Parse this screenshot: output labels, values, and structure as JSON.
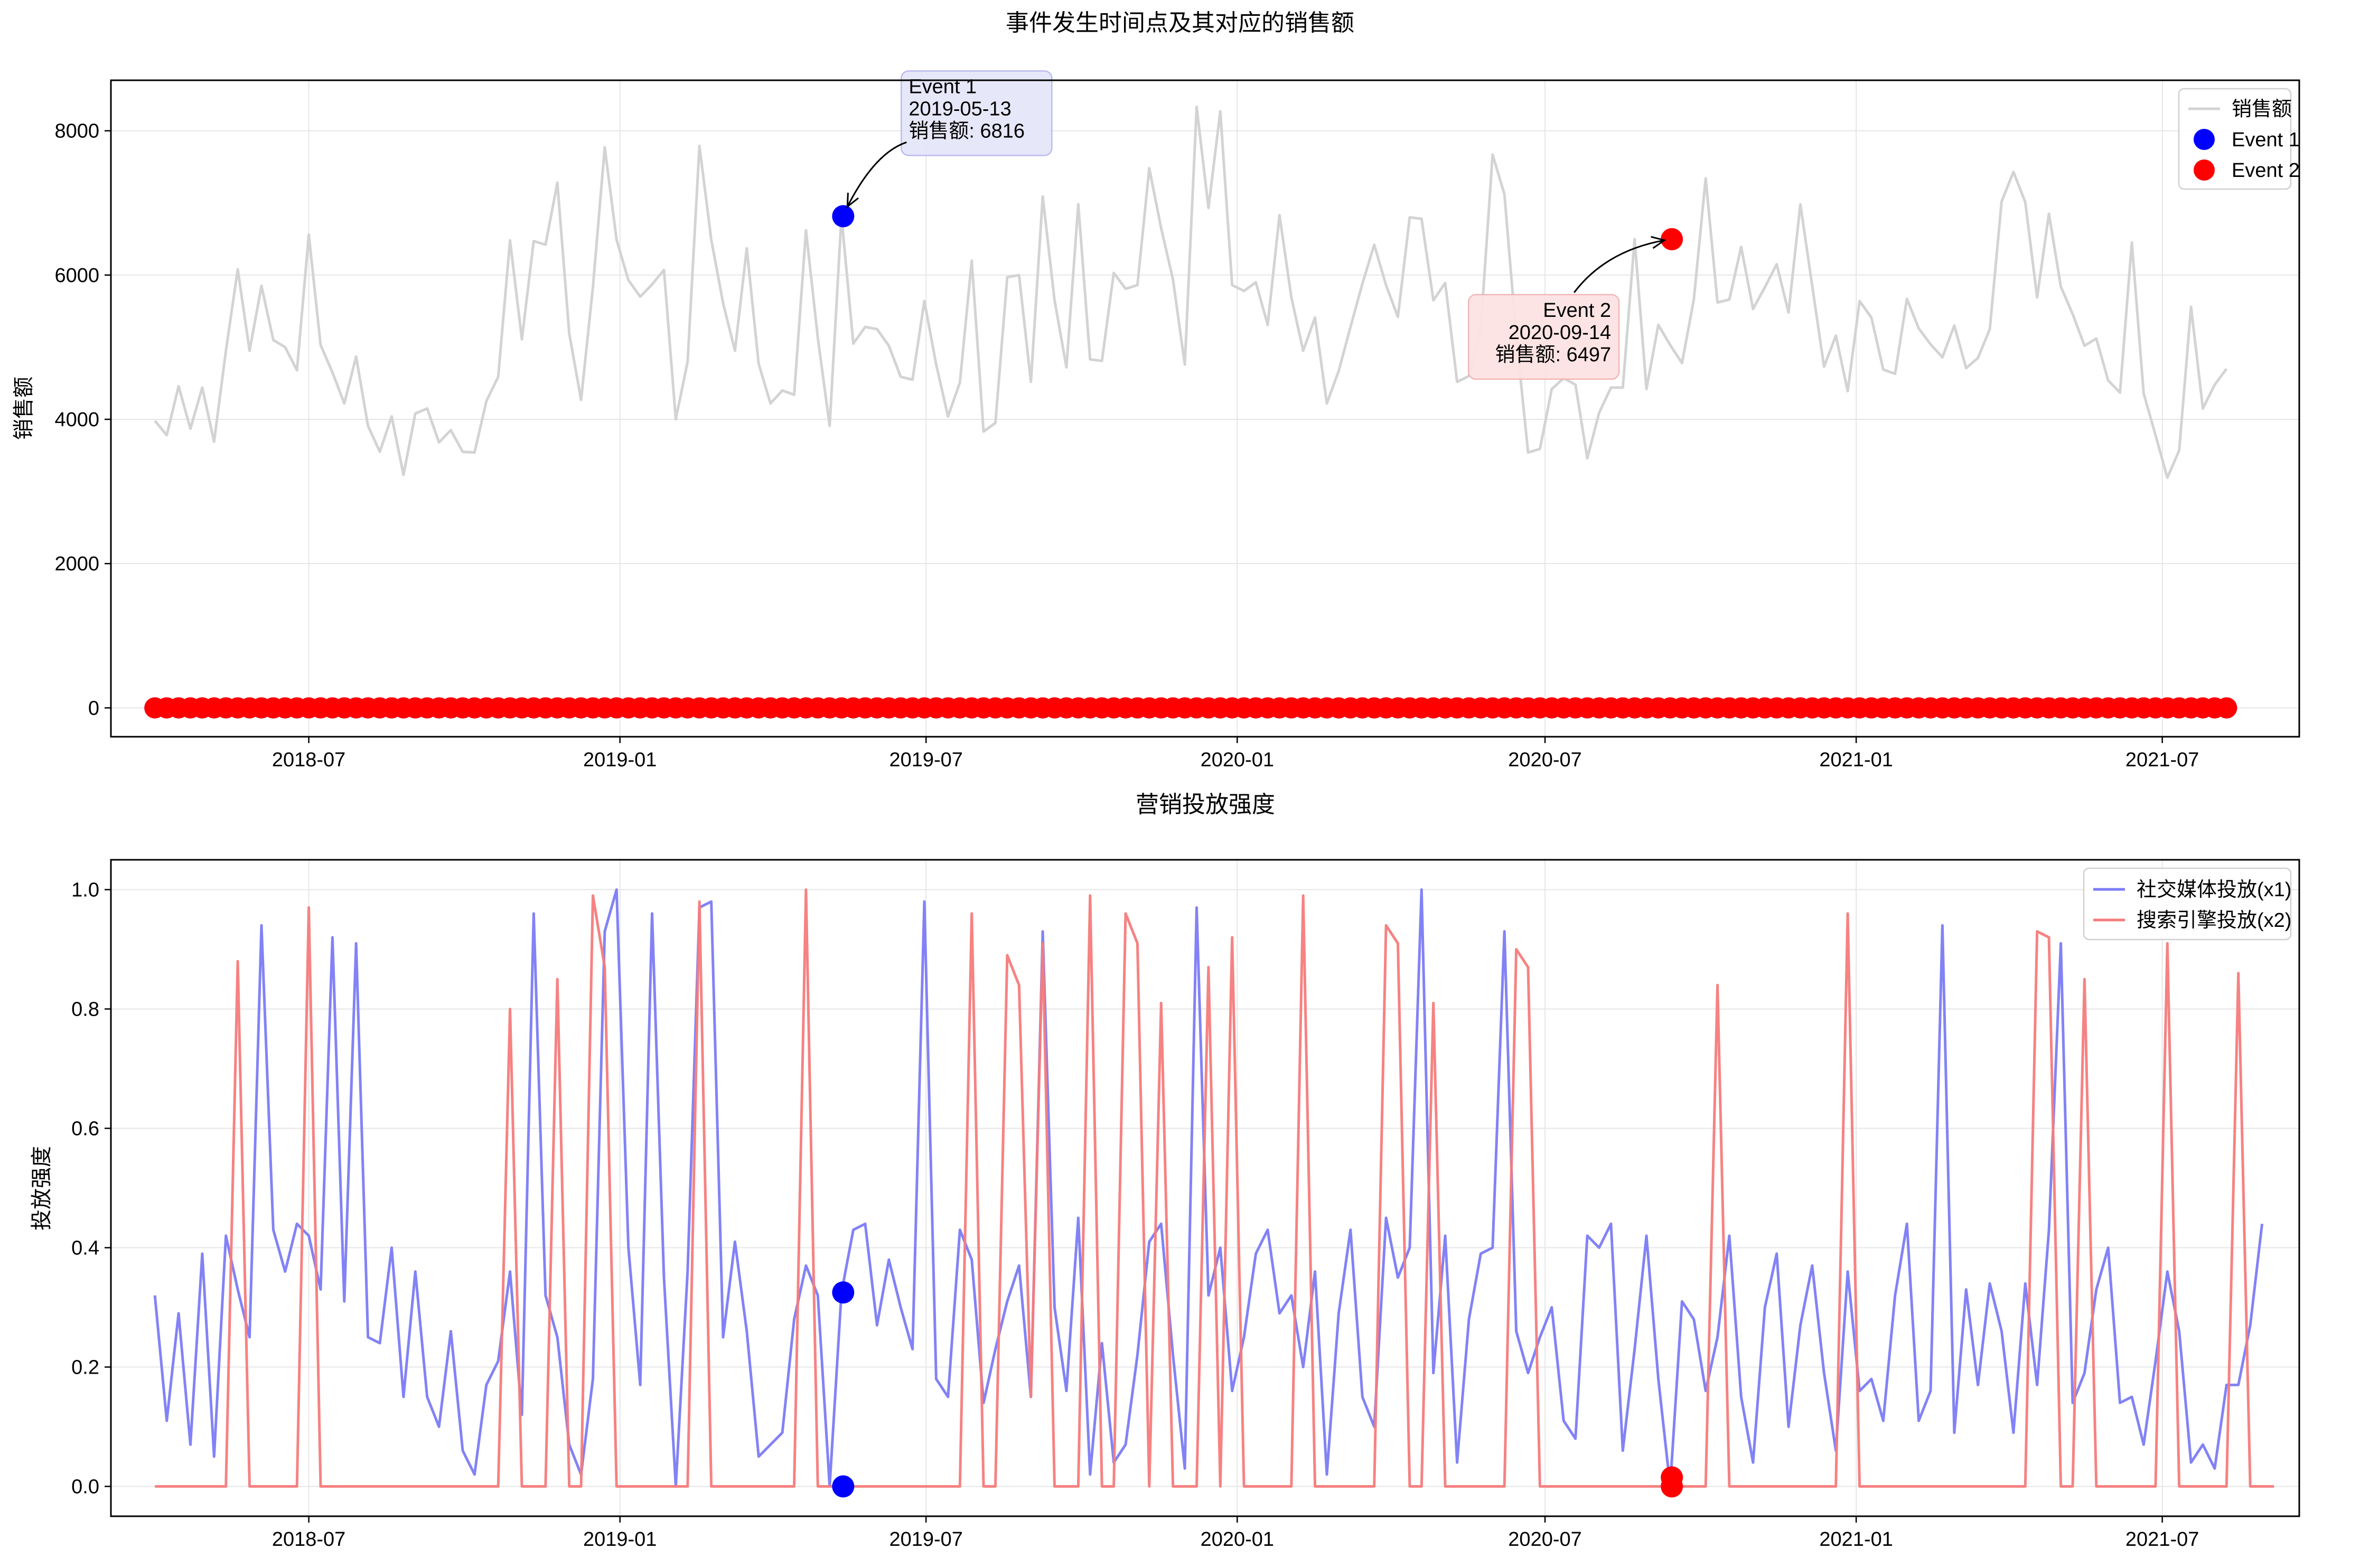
{
  "suptitle": "事件发生时间点及其对应的销售额",
  "chart_data": [
    {
      "type": "line",
      "title": "",
      "xlabel": "",
      "ylabel": "销售额",
      "xlim": [
        "2018-03-06",
        "2021-09-20"
      ],
      "ylim": [
        -400,
        8700
      ],
      "x_tick_labels": [
        "2018-07",
        "2019-01",
        "2019-07",
        "2020-01",
        "2020-07",
        "2021-01",
        "2021-07"
      ],
      "y_ticks": [
        0,
        2000,
        4000,
        6000,
        8000
      ],
      "grid": true,
      "legend_position": "upper right",
      "start_date": "2018-04-01",
      "step_days": 7,
      "series": [
        {
          "name": "销售额",
          "color": "#d3d3d3",
          "values": [
            3980,
            3780,
            4460,
            3870,
            4440,
            3690,
            4950,
            6080,
            4950,
            5850,
            5100,
            5000,
            4680,
            6560,
            5030,
            4650,
            4220,
            4870,
            3910,
            3550,
            4040,
            3230,
            4080,
            4150,
            3680,
            3850,
            3550,
            3540,
            4250,
            4590,
            6480,
            5110,
            6470,
            6420,
            7280,
            5190,
            4270,
            5830,
            7770,
            6490,
            5930,
            5700,
            5870,
            6070,
            4000,
            4800,
            7790,
            6490,
            5610,
            4950,
            6370,
            4770,
            4220,
            4400,
            4340,
            6620,
            5130,
            3910,
            6816,
            5050,
            5280,
            5250,
            5020,
            4590,
            4550,
            5640,
            4760,
            4040,
            4510,
            6200,
            3830,
            3950,
            5970,
            6000,
            4520,
            7090,
            5650,
            4720,
            6980,
            4830,
            4810,
            6030,
            5810,
            5860,
            7480,
            6650,
            5940,
            4760,
            8330,
            6930,
            8270,
            5860,
            5780,
            5900,
            5310,
            6830,
            5690,
            4950,
            5410,
            4220,
            4670,
            5280,
            5880,
            6420,
            5860,
            5420,
            6800,
            6780,
            5650,
            5890,
            4520,
            4600,
            5260,
            7670,
            7120,
            5150,
            3540,
            3590,
            4420,
            4570,
            4480,
            3460,
            4090,
            4440,
            4440,
            6497,
            4420,
            5310,
            5030,
            4780,
            5660,
            7340,
            5620,
            5660,
            6390,
            5530,
            5830,
            6150,
            5480,
            6980,
            5850,
            4730,
            5160,
            4390,
            5640,
            5410,
            4690,
            4630,
            5670,
            5260,
            5040,
            4860,
            5300,
            4710,
            4850,
            5250,
            7020,
            7430,
            7010,
            5690,
            6850,
            5840,
            5460,
            5020,
            5120,
            4540,
            4370,
            6450,
            4360,
            3780,
            3190,
            3570,
            5560,
            4150,
            4480,
            4700
          ]
        },
        {
          "name": "Event 1",
          "color": "#0000ff",
          "marker": "circle",
          "note": "values are 0 except the marked point"
        },
        {
          "name": "Event 2",
          "color": "#ff0000",
          "marker": "circle",
          "note": "values are 0 except the marked point"
        }
      ],
      "annotations": [
        {
          "label": "Event 1",
          "date": "2019-05-13",
          "value_label": "销售额: 6816",
          "value": 6816,
          "color": "#0000ff",
          "box_fill": "#e6e6fa",
          "box_stroke": "#b8b8ee"
        },
        {
          "label": "Event 2",
          "date": "2020-09-14",
          "value_label": "销售额: 6497",
          "value": 6497,
          "color": "#ff0000",
          "box_fill": "#fde3e3",
          "box_stroke": "#f2b3b3"
        }
      ]
    },
    {
      "type": "line",
      "title": "营销投放强度",
      "xlabel": "",
      "ylabel": "投放强度",
      "xlim": [
        "2018-03-06",
        "2021-09-20"
      ],
      "ylim": [
        -0.05,
        1.05
      ],
      "x_tick_labels": [
        "2018-07",
        "2019-01",
        "2019-07",
        "2020-01",
        "2020-07",
        "2021-01",
        "2021-07"
      ],
      "y_ticks": [
        0.0,
        0.2,
        0.4,
        0.6,
        0.8,
        1.0
      ],
      "y_tick_labels": [
        "0.0",
        "0.2",
        "0.4",
        "0.6",
        "0.8",
        "1.0"
      ],
      "grid": true,
      "legend_position": "upper right",
      "start_date": "2018-04-01",
      "step_days": 7,
      "series": [
        {
          "name": "社交媒体投放(x1)",
          "color": "#7b7bf5",
          "values": [
            0.32,
            0.11,
            0.29,
            0.07,
            0.39,
            0.05,
            0.42,
            0.33,
            0.25,
            0.94,
            0.43,
            0.36,
            0.44,
            0.42,
            0.33,
            0.92,
            0.31,
            0.91,
            0.25,
            0.24,
            0.4,
            0.15,
            0.36,
            0.15,
            0.1,
            0.26,
            0.06,
            0.02,
            0.17,
            0.21,
            0.36,
            0.12,
            0.96,
            0.32,
            0.25,
            0.07,
            0.02,
            0.18,
            0.93,
            1.0,
            0.4,
            0.17,
            0.96,
            0.35,
            0.0,
            0.36,
            0.97,
            0.98,
            0.25,
            0.41,
            0.26,
            0.05,
            0.07,
            0.09,
            0.28,
            0.37,
            0.32,
            0.0,
            0.325,
            0.43,
            0.44,
            0.27,
            0.38,
            0.3,
            0.23,
            0.98,
            0.18,
            0.15,
            0.43,
            0.38,
            0.14,
            0.23,
            0.31,
            0.37,
            0.15,
            0.93,
            0.3,
            0.16,
            0.45,
            0.02,
            0.24,
            0.04,
            0.07,
            0.22,
            0.41,
            0.44,
            0.22,
            0.03,
            0.97,
            0.32,
            0.4,
            0.16,
            0.25,
            0.39,
            0.43,
            0.29,
            0.32,
            0.2,
            0.36,
            0.02,
            0.29,
            0.43,
            0.15,
            0.1,
            0.45,
            0.35,
            0.4,
            1.0,
            0.19,
            0.42,
            0.04,
            0.28,
            0.39,
            0.4,
            0.93,
            0.26,
            0.19,
            0.25,
            0.3,
            0.11,
            0.08,
            0.42,
            0.4,
            0.44,
            0.06,
            0.23,
            0.42,
            0.18,
            0.0,
            0.31,
            0.28,
            0.16,
            0.25,
            0.42,
            0.15,
            0.04,
            0.3,
            0.39,
            0.1,
            0.27,
            0.37,
            0.19,
            0.06,
            0.36,
            0.16,
            0.18,
            0.11,
            0.32,
            0.44,
            0.11,
            0.16,
            0.94,
            0.09,
            0.33,
            0.17,
            0.34,
            0.26,
            0.09,
            0.34,
            0.17,
            0.43,
            0.91,
            0.14,
            0.19,
            0.33,
            0.4,
            0.14,
            0.15,
            0.07,
            0.21,
            0.36,
            0.26,
            0.04,
            0.07,
            0.03,
            0.17,
            0.17,
            0.27,
            0.44
          ]
        },
        {
          "name": "搜索引擎投放(x2)",
          "color": "#f57b7b",
          "values": [
            0,
            0,
            0,
            0,
            0,
            0,
            0,
            0.88,
            0,
            0,
            0,
            0,
            0,
            0.97,
            0,
            0,
            0,
            0,
            0,
            0,
            0,
            0,
            0,
            0,
            0,
            0,
            0,
            0,
            0,
            0,
            0.8,
            0,
            0,
            0,
            0.85,
            0,
            0,
            0.99,
            0.87,
            0,
            0,
            0,
            0,
            0,
            0,
            0,
            0.98,
            0,
            0,
            0,
            0,
            0,
            0,
            0,
            0,
            1.0,
            0,
            0,
            0,
            0,
            0,
            0,
            0,
            0,
            0,
            0,
            0,
            0,
            0,
            0.96,
            0,
            0,
            0.89,
            0.84,
            0.15,
            0.91,
            0,
            0,
            0,
            0.99,
            0,
            0,
            0.96,
            0.91,
            0,
            0.81,
            0,
            0,
            0,
            0.87,
            0,
            0.92,
            0,
            0,
            0,
            0,
            0,
            0.99,
            0,
            0,
            0,
            0,
            0,
            0,
            0.94,
            0.91,
            0,
            0,
            0.81,
            0,
            0,
            0,
            0,
            0,
            0,
            0.9,
            0.87,
            0,
            0,
            0,
            0,
            0,
            0,
            0,
            0,
            0,
            0,
            0,
            0,
            0,
            0,
            0,
            0.84,
            0,
            0,
            0,
            0,
            0,
            0,
            0,
            0,
            0,
            0,
            0.96,
            0,
            0,
            0,
            0,
            0,
            0,
            0,
            0,
            0,
            0,
            0,
            0,
            0,
            0,
            0,
            0.93,
            0.92,
            0,
            0,
            0.85,
            0,
            0,
            0,
            0,
            0,
            0,
            0.91,
            0,
            0,
            0,
            0,
            0,
            0.86,
            0,
            0,
            0
          ]
        }
      ],
      "markers": [
        {
          "date": "2019-05-13",
          "values": [
            0.325,
            0.0
          ],
          "color": "#0000ff"
        },
        {
          "date": "2020-09-14",
          "values": [
            0.0,
            0.015
          ],
          "color": "#ff0000"
        }
      ]
    }
  ]
}
